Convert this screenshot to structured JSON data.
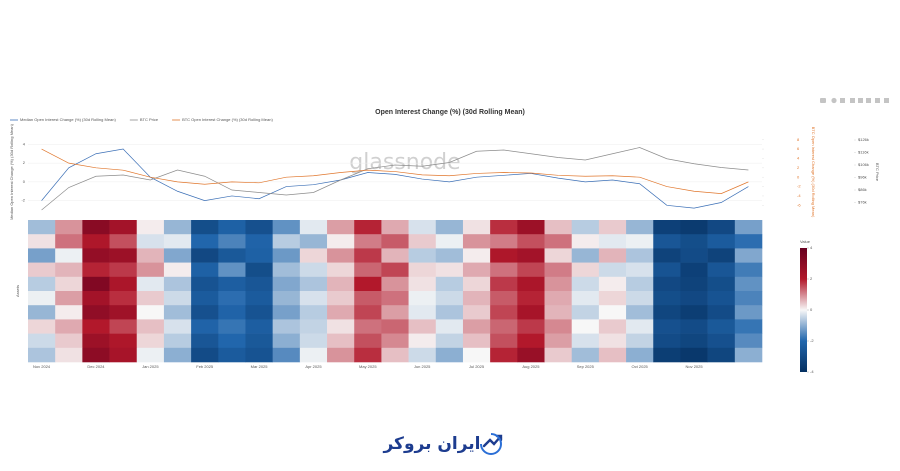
{
  "watermark": "glassnode",
  "footer": {
    "brand": "ایران بروکر"
  },
  "chart_data": [
    {
      "type": "line",
      "title": "Open Interest Change (%) (30d Rolling Mean)",
      "ylabel": "Median Open Interest Change (%) (30d Rolling Mean)",
      "y2label": "BTC Open Interest Change (%) (30d Rolling Mean)",
      "y3label": "BTC Price",
      "categories": [
        "Nov 2024",
        null,
        "Dec 2024",
        null,
        "Jan 2025",
        null,
        "Feb 2025",
        null,
        "Mar 2025",
        null,
        "Apr 2025",
        null,
        "May 2025",
        null,
        "Jun 2025",
        null,
        "Jul 2025",
        null,
        "Aug 2025",
        null,
        "Sep 2025",
        null,
        "Oct 2025",
        null,
        "Nov 2025",
        null,
        null
      ],
      "ylim": [
        -3,
        5
      ],
      "yticks": [
        4,
        2,
        0,
        -2
      ],
      "y2lim": [
        -7,
        9
      ],
      "y2ticks": [
        8,
        6,
        4,
        2,
        0,
        -2,
        -4,
        -6
      ],
      "y3lim": [
        70000,
        130000
      ],
      "y3ticks": [
        {
          "value": 126000,
          "label": "$126k"
        },
        {
          "value": 116000,
          "label": "$116k"
        },
        {
          "value": 106000,
          "label": "$106k"
        },
        {
          "value": 96000,
          "label": "$96k"
        },
        {
          "value": 86000,
          "label": "$86k"
        },
        {
          "value": 76000,
          "label": "$76k"
        }
      ],
      "grid": true,
      "series": [
        {
          "name": "Median Open Interest Change (%) (30d Rolling Mean)",
          "color": "#3b6fb6",
          "values": [
            -2.0,
            1.5,
            3.0,
            3.5,
            0.5,
            -1.0,
            -2.0,
            -1.5,
            -1.8,
            -0.5,
            -0.3,
            0.2,
            1.0,
            0.8,
            0.3,
            0.0,
            0.5,
            0.7,
            0.9,
            0.4,
            0.0,
            0.2,
            -0.2,
            -2.5,
            -2.8,
            -2.2,
            -0.5
          ]
        },
        {
          "name": "BTC Price",
          "color": "#8c8c8c",
          "axis": "y3",
          "values": [
            70000,
            88000,
            97000,
            98000,
            94000,
            102000,
            97000,
            86000,
            84000,
            82000,
            84000,
            94000,
            103000,
            106000,
            105000,
            108000,
            117000,
            118000,
            115000,
            112000,
            110000,
            115000,
            120000,
            111000,
            107000,
            104000,
            102000
          ]
        },
        {
          "name": "BTC Open Interest Change (%) (30d Rolling Mean)",
          "color": "#e0762c",
          "axis": "y2",
          "values": [
            6,
            3,
            2,
            1.5,
            0,
            -1,
            -1.5,
            -1,
            -1.2,
            0,
            0.3,
            1,
            1.5,
            1.2,
            0.5,
            0.3,
            0.8,
            1.0,
            0.9,
            0.4,
            0.2,
            0.3,
            0,
            -2,
            -3,
            -3.5,
            -1
          ]
        }
      ]
    },
    {
      "type": "heatmap",
      "ylabel": "Assets",
      "colorbar_title": "Value",
      "categories": [
        "Nov 2024",
        null,
        "Dec 2024",
        null,
        "Jan 2025",
        null,
        "Feb 2025",
        null,
        "Mar 2025",
        null,
        "Apr 2025",
        null,
        "May 2025",
        null,
        "Jun 2025",
        null,
        "Jul 2025",
        null,
        "Aug 2025",
        null,
        "Sep 2025",
        null,
        "Oct 2025",
        null,
        "Nov 2025",
        null,
        null
      ],
      "zlim": [
        -4,
        4
      ],
      "zticks": [
        4,
        2,
        0,
        -2,
        -4
      ],
      "z": [
        [
          -0.8,
          0.9,
          3.1,
          2.4,
          0.1,
          -0.9,
          -2.9,
          -2.2,
          -2.8,
          -1.4,
          -0.2,
          0.8,
          1.9,
          0.7,
          -0.3,
          -0.9,
          0.2,
          1.8,
          2.6,
          0.5,
          -0.6,
          0.4,
          -0.9,
          -3.4,
          -3.6,
          -3.1,
          -1.2
        ],
        [
          0.2,
          1.2,
          2.1,
          1.5,
          -0.3,
          -0.2,
          -2.0,
          -1.6,
          -2.1,
          -0.6,
          -0.9,
          0.1,
          1.1,
          1.4,
          0.4,
          -0.1,
          0.9,
          1.1,
          1.5,
          1.2,
          0.1,
          -0.2,
          -0.1,
          -2.6,
          -2.9,
          -2.4,
          -1.9
        ],
        [
          -1.2,
          -0.1,
          2.8,
          2.6,
          0.6,
          -1.1,
          -3.1,
          -2.5,
          -2.2,
          -1.3,
          0.3,
          0.9,
          1.7,
          0.6,
          -0.6,
          -0.8,
          0.1,
          2.1,
          2.4,
          0.3,
          -0.9,
          0.6,
          -0.7,
          -3.3,
          -3.0,
          -3.3,
          -1.1
        ],
        [
          0.4,
          0.6,
          1.9,
          1.7,
          0.9,
          0.1,
          -2.2,
          -1.4,
          -2.9,
          -0.8,
          -0.4,
          0.3,
          1.3,
          1.6,
          0.3,
          0.2,
          0.7,
          1.2,
          1.6,
          1.1,
          0.3,
          -0.4,
          -0.3,
          -2.7,
          -3.4,
          -2.6,
          -1.7
        ],
        [
          -0.6,
          0.3,
          3.3,
          2.2,
          -0.2,
          -0.7,
          -2.7,
          -2.3,
          -2.6,
          -1.1,
          -0.7,
          0.6,
          2.0,
          0.9,
          0.2,
          -0.6,
          0.3,
          1.7,
          2.2,
          0.9,
          -0.4,
          0.1,
          -0.6,
          -3.1,
          -3.3,
          -2.9,
          -1.4
        ],
        [
          -0.1,
          0.8,
          2.4,
          1.8,
          0.4,
          -0.4,
          -2.4,
          -1.9,
          -2.4,
          -0.9,
          -0.3,
          0.4,
          1.4,
          1.2,
          -0.1,
          -0.4,
          0.6,
          1.4,
          1.9,
          0.7,
          -0.2,
          0.3,
          -0.4,
          -2.9,
          -3.1,
          -2.7,
          -1.6
        ],
        [
          -0.9,
          0.1,
          2.9,
          2.5,
          0.0,
          -0.8,
          -2.8,
          -2.1,
          -2.7,
          -1.2,
          -0.6,
          0.7,
          1.6,
          0.8,
          -0.2,
          -0.7,
          0.4,
          1.6,
          2.3,
          0.6,
          -0.5,
          0.0,
          -0.8,
          -3.2,
          -3.5,
          -3.0,
          -1.3
        ],
        [
          0.3,
          0.7,
          2.0,
          1.6,
          0.5,
          -0.3,
          -2.1,
          -1.8,
          -2.3,
          -0.7,
          -0.5,
          0.2,
          1.2,
          1.3,
          0.5,
          -0.2,
          0.8,
          1.3,
          1.7,
          1.0,
          0.0,
          0.4,
          -0.2,
          -2.8,
          -3.0,
          -2.5,
          -1.8
        ],
        [
          -0.4,
          0.4,
          2.6,
          2.1,
          0.3,
          -0.6,
          -2.6,
          -2.0,
          -2.5,
          -1.0,
          -0.4,
          0.5,
          1.5,
          1.0,
          0.1,
          -0.5,
          0.5,
          1.5,
          2.0,
          0.8,
          -0.3,
          0.2,
          -0.5,
          -3.0,
          -3.2,
          -2.8,
          -1.5
        ],
        [
          -0.7,
          0.2,
          3.0,
          2.3,
          -0.1,
          -1.0,
          -3.0,
          -2.4,
          -2.7,
          -1.5,
          -0.1,
          0.9,
          1.8,
          0.5,
          -0.4,
          -1.0,
          0.0,
          1.9,
          2.7,
          0.4,
          -0.8,
          0.5,
          -1.0,
          -3.5,
          -3.7,
          -3.2,
          -1.0
        ]
      ]
    }
  ]
}
